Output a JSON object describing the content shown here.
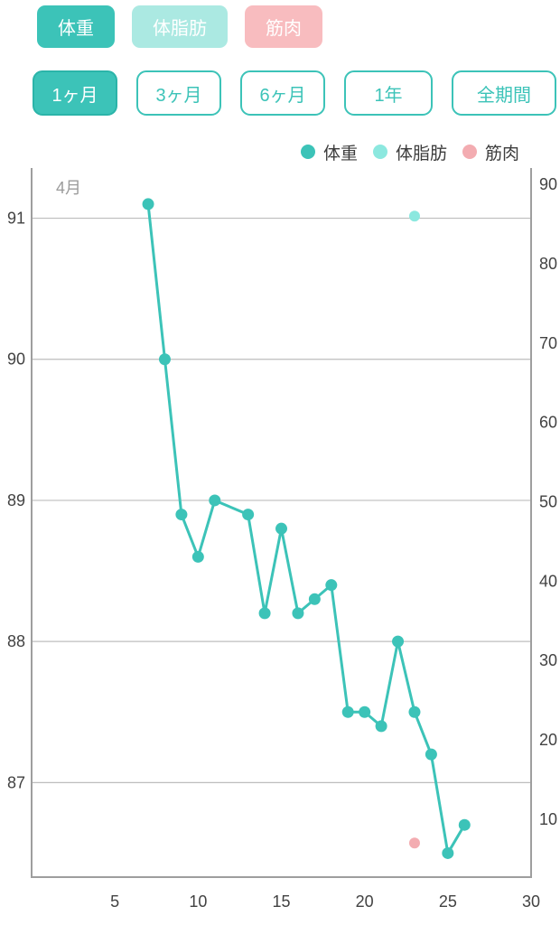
{
  "colors": {
    "teal": "#3cc3b8",
    "teal_dark": "#2bb4a9",
    "light_teal": "#abe9e2",
    "pink": "#f8bcbf",
    "grid": "#bdbdbd",
    "axis": "#9e9e9e",
    "label_dark": "#424242",
    "label_gray": "#9b9b9b"
  },
  "series_toggles": [
    {
      "label": "体重",
      "active": true,
      "color": "#3cc3b8"
    },
    {
      "label": "体脂肪",
      "active": false,
      "color": "#abe9e2"
    },
    {
      "label": "筋肉",
      "active": false,
      "color": "#f8bcbf"
    }
  ],
  "period_buttons": [
    {
      "label": "1ヶ月",
      "active": true
    },
    {
      "label": "3ヶ月",
      "active": false
    },
    {
      "label": "6ヶ月",
      "active": false
    },
    {
      "label": "1年",
      "active": false
    },
    {
      "label": "全期間",
      "active": false
    }
  ],
  "legend": [
    {
      "label": "体重",
      "color": "#3cc3b8"
    },
    {
      "label": "体脂肪",
      "color": "#8ce8df"
    },
    {
      "label": "筋肉",
      "color": "#f3acb1"
    }
  ],
  "chart_data": {
    "type": "line",
    "month_label": "4月",
    "grid": true,
    "legend_position": "top-right",
    "x_axis": {
      "min": 0,
      "max": 30,
      "ticks": [
        5,
        10,
        15,
        20,
        25,
        30
      ]
    },
    "left_axis": {
      "min": 86.33,
      "max": 91.33,
      "ticks": [
        91,
        90,
        89,
        88,
        87
      ]
    },
    "right_axis": {
      "min": 2.7,
      "max": 91.6,
      "ticks": [
        90,
        80,
        70,
        60,
        50,
        40,
        30,
        20,
        10
      ]
    },
    "series": [
      {
        "name": "体重",
        "axis": "left",
        "color": "#3cc3b8",
        "line": true,
        "dot_radius": 6.5,
        "points": [
          [
            7,
            91.1
          ],
          [
            8,
            90.0
          ],
          [
            9,
            88.9
          ],
          [
            10,
            88.6
          ],
          [
            11,
            89.0
          ],
          [
            13,
            88.9
          ],
          [
            14,
            88.2
          ],
          [
            15,
            88.8
          ],
          [
            16,
            88.2
          ],
          [
            17,
            88.3
          ],
          [
            18,
            88.4
          ],
          [
            19,
            87.5
          ],
          [
            20,
            87.5
          ],
          [
            21,
            87.4
          ],
          [
            22,
            88.0
          ],
          [
            23,
            87.5
          ],
          [
            24,
            87.2
          ],
          [
            25,
            86.5
          ],
          [
            26,
            86.7
          ]
        ]
      },
      {
        "name": "体脂肪",
        "axis": "right",
        "color": "#8ce8df",
        "line": false,
        "dot_radius": 6,
        "points": [
          [
            23,
            86
          ]
        ]
      },
      {
        "name": "筋肉",
        "axis": "right",
        "color": "#f3acb1",
        "line": false,
        "dot_radius": 6,
        "points": [
          [
            23,
            7
          ]
        ]
      }
    ]
  }
}
